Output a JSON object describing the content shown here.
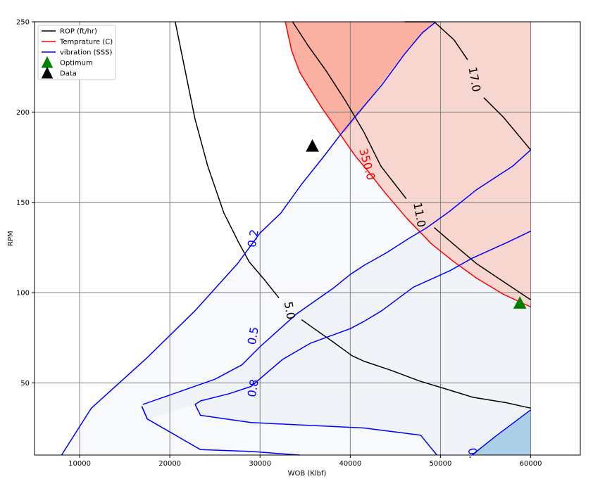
{
  "chart_data": {
    "type": "line",
    "xlabel": "WOB (Klbf)",
    "ylabel": "RPM",
    "xlim": [
      5000,
      65500
    ],
    "ylim": [
      10,
      250
    ],
    "xticks": [
      10000,
      20000,
      30000,
      40000,
      50000,
      60000
    ],
    "yticks": [
      50,
      100,
      150,
      200,
      250
    ],
    "grid": true,
    "legend_position": "top-left",
    "legend": [
      {
        "label": "ROP (ft/hr)",
        "kind": "line",
        "color": "#000000"
      },
      {
        "label": "Temprature (C)",
        "kind": "line",
        "color": "#ff0000"
      },
      {
        "label": "vibration (SSS)",
        "kind": "line",
        "color": "#0000ff"
      },
      {
        "label": "Optimum",
        "kind": "marker",
        "color": "#008000"
      },
      {
        "label": "Data",
        "kind": "marker",
        "color": "#000000"
      }
    ],
    "fills": [
      {
        "name": "vib-low",
        "color": "#f7f9fd",
        "points": [
          [
            8000,
            10
          ],
          [
            11300,
            36
          ],
          [
            17500,
            64
          ],
          [
            22800,
            90
          ],
          [
            27500,
            116
          ],
          [
            30000,
            133
          ],
          [
            32300,
            144
          ],
          [
            34600,
            160
          ],
          [
            37000,
            175
          ],
          [
            39000,
            188
          ],
          [
            40800,
            199
          ],
          [
            43500,
            215
          ],
          [
            46000,
            232
          ],
          [
            48000,
            244
          ],
          [
            49500,
            250
          ],
          [
            60000,
            250
          ],
          [
            60000,
            10
          ]
        ]
      },
      {
        "name": "vib-mid",
        "color": "#f0f4f9",
        "points": [
          [
            17000,
            38
          ],
          [
            21000,
            45
          ],
          [
            25000,
            52
          ],
          [
            28000,
            60
          ],
          [
            30000,
            70
          ],
          [
            34000,
            88
          ],
          [
            36000,
            95
          ],
          [
            38000,
            102
          ],
          [
            40000,
            110
          ],
          [
            41500,
            115
          ],
          [
            44000,
            122
          ],
          [
            46500,
            130
          ],
          [
            48500,
            136
          ],
          [
            51000,
            145
          ],
          [
            54000,
            157
          ],
          [
            58000,
            170
          ],
          [
            60000,
            179
          ],
          [
            60000,
            10
          ],
          [
            49600,
            10
          ],
          [
            47800,
            21
          ],
          [
            41500,
            25
          ],
          [
            29000,
            28
          ],
          [
            23400,
            32
          ],
          [
            22800,
            38
          ],
          [
            17500,
            30
          ],
          [
            16900,
            37
          ]
        ]
      },
      {
        "name": "vib-high",
        "color": "#abcfe6",
        "points": [
          [
            53500,
            10
          ],
          [
            56000,
            20
          ],
          [
            60000,
            35
          ],
          [
            60000,
            10
          ]
        ]
      },
      {
        "name": "temp-fill-light",
        "color": "#f8d6d0",
        "points": [
          [
            32800,
            250
          ],
          [
            60000,
            250
          ],
          [
            60000,
            92
          ],
          [
            57000,
            99
          ],
          [
            54000,
            108
          ],
          [
            51500,
            117
          ],
          [
            49000,
            127
          ],
          [
            46300,
            141
          ],
          [
            43900,
            155
          ],
          [
            42000,
            167
          ],
          [
            40500,
            176
          ],
          [
            38700,
            189
          ],
          [
            36900,
            202
          ],
          [
            35500,
            213
          ],
          [
            34400,
            222
          ],
          [
            33500,
            234
          ]
        ]
      },
      {
        "name": "temp-fill-dark",
        "color": "#fab1a1",
        "points": [
          [
            32800,
            250
          ],
          [
            49400,
            250
          ],
          [
            47000,
            238
          ],
          [
            44500,
            223
          ],
          [
            42600,
            210
          ],
          [
            41000,
            199
          ],
          [
            39500,
            189
          ],
          [
            38700,
            189
          ],
          [
            36900,
            202
          ],
          [
            35500,
            213
          ],
          [
            34400,
            222
          ],
          [
            33500,
            234
          ]
        ]
      }
    ],
    "series": [
      {
        "name": "ROP (ft/hr)",
        "group": "ROP (ft/hr)",
        "color": "#000000",
        "level": "5.0",
        "points": [
          [
            20600,
            250
          ],
          [
            21700,
            223
          ],
          [
            22800,
            196
          ],
          [
            24200,
            170
          ],
          [
            26000,
            144
          ],
          [
            27600,
            128
          ],
          [
            28800,
            117
          ],
          [
            30500,
            107
          ],
          [
            32100,
            97
          ]
        ]
      },
      {
        "group": "ROP (ft/hr)",
        "color": "#000000",
        "points": [
          [
            34600,
            85
          ],
          [
            36000,
            80
          ],
          [
            38000,
            73
          ],
          [
            40200,
            65
          ],
          [
            41500,
            62
          ],
          [
            44500,
            57
          ],
          [
            47700,
            51
          ],
          [
            51000,
            46
          ],
          [
            53600,
            42
          ],
          [
            57300,
            39
          ],
          [
            60000,
            36
          ]
        ]
      },
      {
        "group": "ROP (ft/hr)",
        "color": "#000000",
        "level": "11.0",
        "points": [
          [
            33600,
            250
          ],
          [
            35300,
            237
          ],
          [
            37300,
            223
          ],
          [
            39500,
            206
          ],
          [
            41500,
            189
          ],
          [
            43400,
            170
          ],
          [
            46200,
            152
          ]
        ]
      },
      {
        "group": "ROP (ft/hr)",
        "color": "#000000",
        "points": [
          [
            49300,
            136
          ],
          [
            51400,
            127
          ],
          [
            54000,
            116
          ],
          [
            57000,
            106
          ],
          [
            60000,
            96
          ]
        ]
      },
      {
        "group": "ROP (ft/hr)",
        "color": "#000000",
        "level": "17.0",
        "points": [
          [
            46000,
            250
          ],
          [
            49300,
            250
          ],
          [
            51500,
            240
          ],
          [
            53000,
            229
          ]
        ]
      },
      {
        "group": "ROP (ft/hr)",
        "color": "#000000",
        "points": [
          [
            54800,
            208
          ],
          [
            57000,
            197
          ],
          [
            60000,
            179
          ]
        ]
      },
      {
        "name": "Temprature (C)",
        "group": "Temprature (C)",
        "color": "#ff0000",
        "level": "350.0",
        "points": [
          [
            32800,
            250
          ],
          [
            33500,
            234
          ],
          [
            34400,
            222
          ],
          [
            35500,
            213
          ],
          [
            36900,
            202
          ],
          [
            38700,
            189
          ],
          [
            40500,
            176
          ],
          [
            42000,
            167
          ],
          [
            43900,
            155
          ],
          [
            46300,
            141
          ],
          [
            49000,
            127
          ],
          [
            51500,
            117
          ],
          [
            54000,
            108
          ],
          [
            57000,
            99
          ],
          [
            60000,
            92
          ]
        ]
      },
      {
        "name": "vibration (SSS)",
        "group": "vibration (SSS)",
        "color": "#0000ff",
        "level": "0.2",
        "points": [
          [
            8000,
            10
          ],
          [
            11300,
            36
          ],
          [
            17500,
            64
          ],
          [
            22800,
            90
          ],
          [
            27500,
            116
          ],
          [
            30000,
            133
          ],
          [
            32300,
            144
          ],
          [
            34600,
            160
          ],
          [
            37000,
            175
          ],
          [
            39000,
            188
          ],
          [
            40800,
            199
          ],
          [
            43500,
            215
          ],
          [
            46000,
            232
          ],
          [
            48000,
            244
          ],
          [
            49500,
            250
          ]
        ]
      },
      {
        "group": "vibration (SSS)",
        "color": "#0000ff",
        "level": "0.5",
        "points": [
          [
            17000,
            38
          ],
          [
            21000,
            45
          ],
          [
            25000,
            52
          ],
          [
            28000,
            60
          ],
          [
            30000,
            70
          ],
          [
            34000,
            88
          ],
          [
            36000,
            95
          ],
          [
            38000,
            102
          ],
          [
            40000,
            110
          ],
          [
            41500,
            115
          ],
          [
            44000,
            122
          ],
          [
            46500,
            130
          ],
          [
            48500,
            136
          ],
          [
            51000,
            145
          ],
          [
            54000,
            157
          ],
          [
            58000,
            170
          ],
          [
            60000,
            179
          ]
        ]
      },
      {
        "group": "vibration (SSS)",
        "color": "#0000ff",
        "points": [
          [
            22800,
            38
          ],
          [
            23400,
            40
          ],
          [
            26600,
            44
          ],
          [
            29000,
            48
          ],
          [
            32500,
            63
          ],
          [
            35600,
            72
          ],
          [
            40000,
            80
          ],
          [
            41500,
            84
          ],
          [
            43500,
            90
          ],
          [
            47000,
            103
          ],
          [
            51000,
            112
          ],
          [
            53500,
            119
          ],
          [
            57500,
            128
          ],
          [
            60000,
            134
          ]
        ]
      },
      {
        "group": "vibration (SSS)",
        "color": "#0000ff",
        "level": "0.8",
        "points": [
          [
            16900,
            37
          ],
          [
            17500,
            30
          ],
          [
            23400,
            13
          ],
          [
            29000,
            12
          ],
          [
            34400,
            10
          ]
        ]
      },
      {
        "group": "vibration (SSS)",
        "color": "#0000ff",
        "points": [
          [
            16900,
            37
          ],
          [
            17500,
            30
          ]
        ]
      },
      {
        "group": "vibration (SSS)",
        "color": "#0000ff",
        "points": [
          [
            22800,
            38
          ],
          [
            23400,
            32
          ],
          [
            29000,
            28
          ],
          [
            41500,
            25
          ],
          [
            47800,
            21
          ],
          [
            49600,
            10
          ]
        ]
      },
      {
        "group": "vibration (SSS)",
        "color": "#0000ff",
        "level": "0.",
        "points": [
          [
            53500,
            10
          ],
          [
            56000,
            20
          ],
          [
            60000,
            35
          ]
        ]
      }
    ],
    "contour_labels": [
      {
        "text": "5.0",
        "x": 33200,
        "y": 90,
        "color": "#000000",
        "rotate": 80
      },
      {
        "text": "11.0",
        "x": 47600,
        "y": 143,
        "color": "#000000",
        "rotate": 80
      },
      {
        "text": "17.0",
        "x": 53700,
        "y": 218,
        "color": "#000000",
        "rotate": 80
      },
      {
        "text": "350.0",
        "x": 41800,
        "y": 171,
        "color": "#ff0000",
        "rotate": 75
      },
      {
        "text": "0.2",
        "x": 29300,
        "y": 130,
        "color": "#0000ff",
        "rotate": -80
      },
      {
        "text": "0.5",
        "x": 29300,
        "y": 76,
        "color": "#0000ff",
        "rotate": -80
      },
      {
        "text": "0.8",
        "x": 29300,
        "y": 47,
        "color": "#0000ff",
        "rotate": -80
      },
      {
        "text": "0.",
        "x": 53500,
        "y": 11,
        "color": "#0000ff",
        "rotate": 80
      }
    ],
    "markers": [
      {
        "name": "Optimum",
        "x": 58800,
        "y": 94,
        "color": "#008000"
      },
      {
        "name": "Data",
        "x": 35800,
        "y": 181,
        "color": "#000000"
      }
    ]
  }
}
